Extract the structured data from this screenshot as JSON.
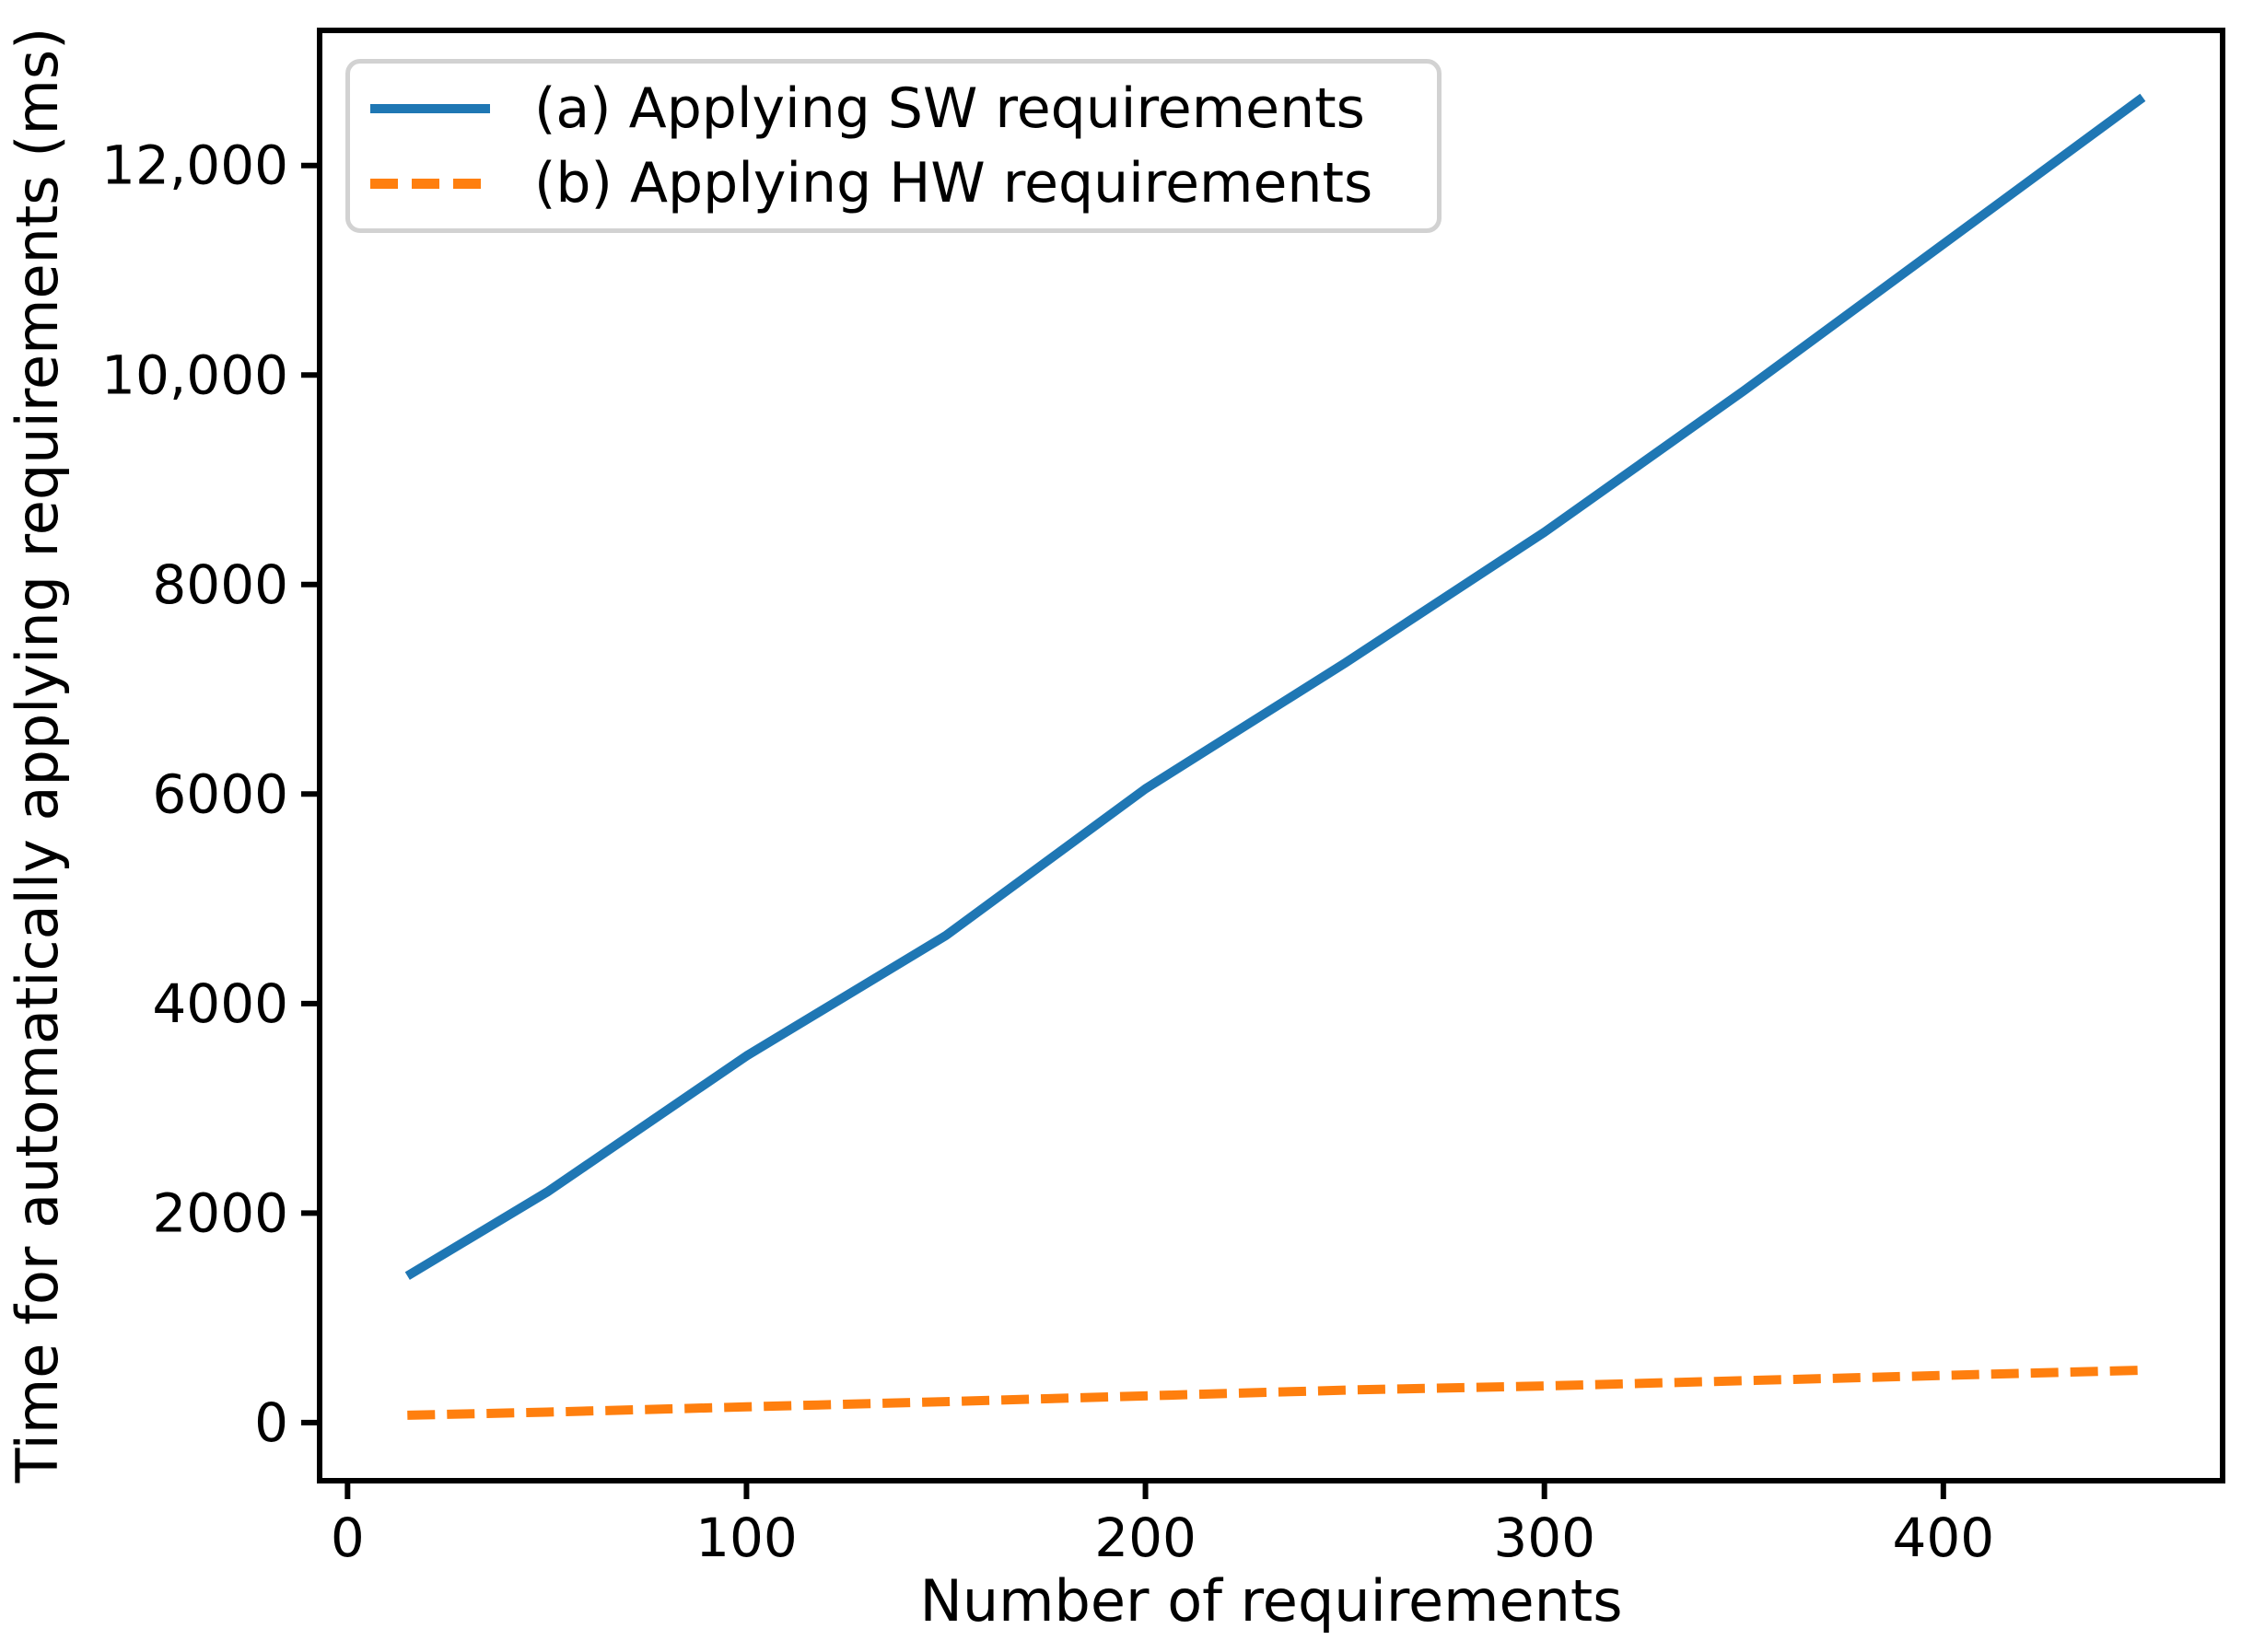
{
  "figure": {
    "background": "#ffffff",
    "text_color": "#000000",
    "spine_color": "#000000"
  },
  "axes": {
    "xlabel": "Number of requirements",
    "ylabel": "Time for automatically applying requirements (ms)"
  },
  "legend": {
    "items": [
      {
        "label": "(a) Applying SW requirements",
        "series_key": "sw",
        "color": "#1f77b4",
        "style": "solid"
      },
      {
        "label": "(b) Applying HW requirements",
        "series_key": "hw",
        "color": "#ff7f0e",
        "style": "dashed"
      }
    ]
  },
  "chart_data": {
    "type": "line",
    "title": "",
    "xlabel": "Number of requirements",
    "ylabel": "Time for automatically applying requirements (ms)",
    "x": [
      15,
      50,
      100,
      150,
      200,
      250,
      300,
      350,
      400,
      450
    ],
    "series": [
      {
        "key": "sw",
        "name": "(a) Applying SW requirements",
        "color": "#1f77b4",
        "style": "solid",
        "linewidth": 10,
        "values": [
          1400,
          2200,
          3500,
          4650,
          6050,
          7250,
          8500,
          9850,
          11250,
          12650
        ]
      },
      {
        "key": "hw",
        "name": "(b) Applying HW requirements",
        "color": "#ff7f0e",
        "style": "dashed",
        "linewidth": 10,
        "values": [
          70,
          100,
          150,
          200,
          255,
          310,
          350,
          400,
          450,
          500
        ]
      }
    ],
    "xlim": [
      -7,
      470
    ],
    "ylim": [
      -555,
      13290
    ],
    "x_ticks": {
      "values": [
        0,
        100,
        200,
        300,
        400
      ],
      "labels": [
        "0",
        "100",
        "200",
        "300",
        "400"
      ]
    },
    "y_ticks": {
      "values": [
        0,
        2000,
        4000,
        6000,
        8000,
        10000,
        12000
      ],
      "labels": [
        "0",
        "2000",
        "4000",
        "6000",
        "8000",
        "10,000",
        "12,000"
      ]
    },
    "grid": false,
    "legend_position": "upper left"
  }
}
